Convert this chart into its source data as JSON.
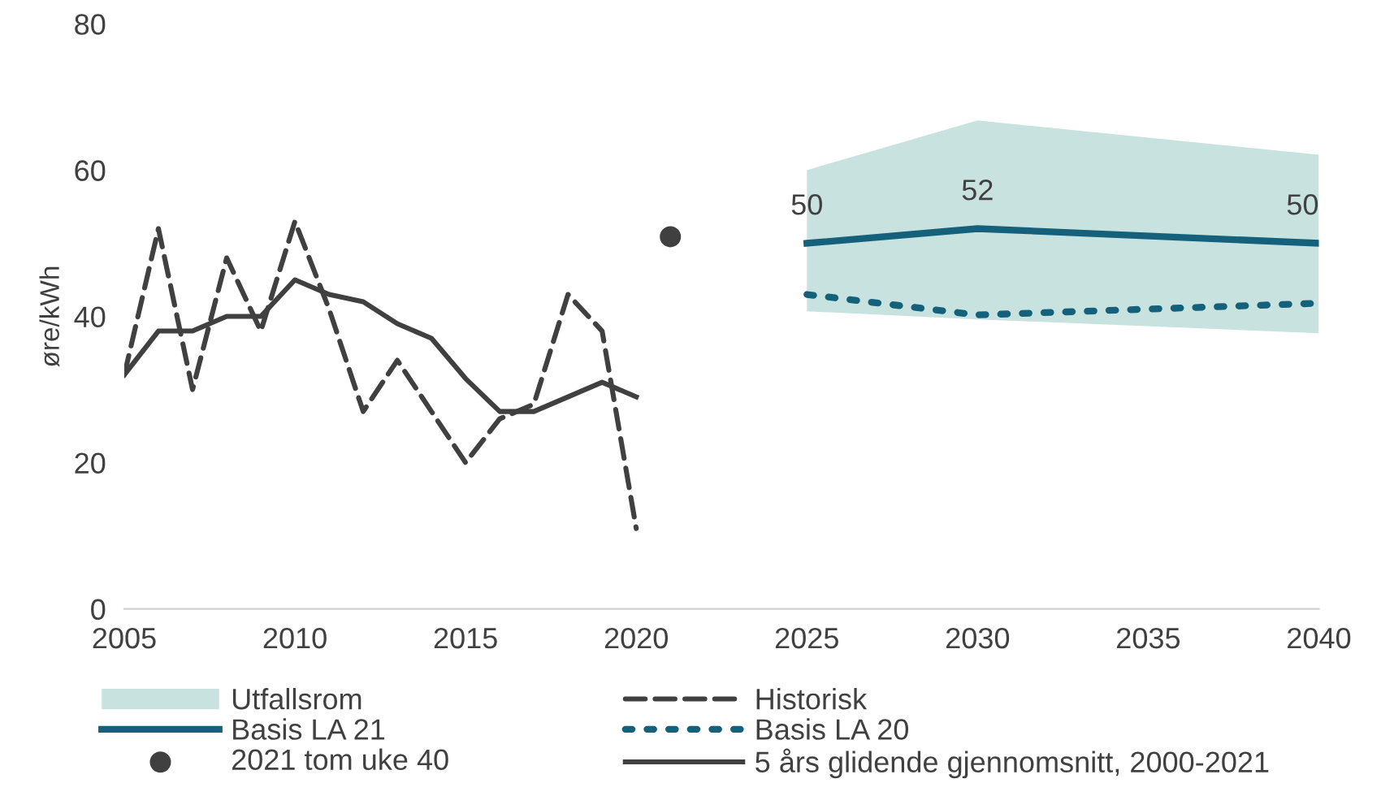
{
  "chart_data": {
    "type": "line",
    "ylabel": "øre/kWh",
    "xlim": [
      2005,
      2040
    ],
    "xticks": [
      2005,
      2010,
      2015,
      2020,
      2025,
      2030,
      2035,
      2040
    ],
    "ylim": [
      0,
      80
    ],
    "yticks": [
      0,
      20,
      40,
      60,
      80
    ],
    "grid": false,
    "legend": "bottom",
    "series": [
      {
        "name": "Utfallsrom",
        "type": "area",
        "color": "#c8e3df",
        "x": [
          2025,
          2030,
          2040
        ],
        "values": [
          null,
          null,
          null
        ],
        "lower": [
          40.7,
          39.6,
          37.7
        ],
        "upper": [
          60,
          66.8,
          62.1
        ]
      },
      {
        "name": "Basis LA 21",
        "type": "line",
        "color": "#15607a",
        "line_style": "solid",
        "x": [
          2025,
          2030,
          2040
        ],
        "values": [
          50,
          52,
          50
        ],
        "value_labels": [
          "50",
          "52",
          "50"
        ]
      },
      {
        "name": "2021 tom uke 40",
        "type": "scatter",
        "color": "#404040",
        "marker": "circle",
        "x": [
          2021
        ],
        "values": [
          50.9
        ]
      },
      {
        "name": "Historisk",
        "type": "line",
        "color": "#404040",
        "line_style": "dashed",
        "x": [
          2005,
          2006,
          2007,
          2008,
          2009,
          2010,
          2011,
          2012,
          2013,
          2014,
          2015,
          2016,
          2017,
          2018,
          2019,
          2020
        ],
        "values": [
          32,
          52,
          30,
          48,
          38,
          53,
          41,
          27,
          34,
          27,
          20,
          26,
          28,
          43,
          38,
          11
        ]
      },
      {
        "name": "Basis LA 20",
        "type": "line",
        "color": "#15607a",
        "line_style": "dotted",
        "x": [
          2025,
          2030,
          2040
        ],
        "values": [
          43,
          40.2,
          41.8
        ]
      },
      {
        "name": "5 års glidende gjennomsnitt, 2000-2021",
        "type": "line",
        "color": "#404040",
        "line_style": "solid",
        "x": [
          2005,
          2006,
          2007,
          2008,
          2009,
          2010,
          2011,
          2012,
          2013,
          2014,
          2015,
          2016,
          2017,
          2018,
          2019,
          2020
        ],
        "values": [
          32,
          38,
          38,
          40,
          40,
          45,
          43,
          42,
          39,
          37,
          31.5,
          27,
          27,
          29,
          31,
          29
        ]
      }
    ]
  }
}
